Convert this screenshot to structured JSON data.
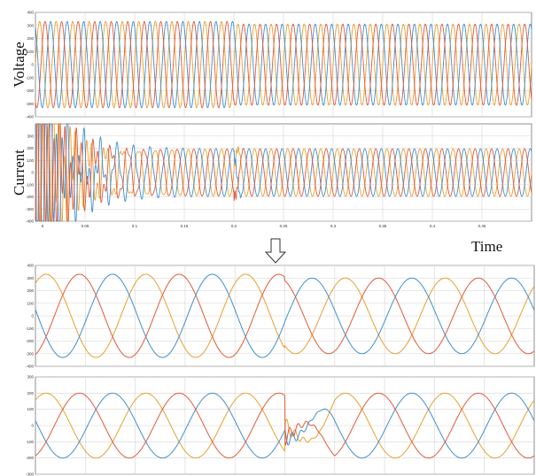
{
  "chart_data": [
    {
      "type": "line",
      "ylabel": "Voltage",
      "xlim": [
        0,
        0.5
      ],
      "ylim": [
        -400,
        400
      ],
      "yticks": [
        "400",
        "300",
        "200",
        "100",
        "0",
        "-100",
        "-200",
        "-300",
        "-400"
      ],
      "grid": true,
      "freq_hz": 60,
      "series": [
        {
          "phase": 0,
          "color": "#e8a030",
          "amplitude_before": 330,
          "amplitude_after": 310,
          "change_at": 0.2
        },
        {
          "phase": 120,
          "color": "#3f8fd0",
          "amplitude_before": 330,
          "amplitude_after": 310,
          "change_at": 0.2
        },
        {
          "phase": 240,
          "color": "#e05a3a",
          "amplitude_before": 330,
          "amplitude_after": 310,
          "change_at": 0.2
        }
      ]
    },
    {
      "type": "line",
      "ylabel": "Current",
      "xlabel": "Time",
      "xlim": [
        0,
        0.5
      ],
      "ylim": [
        -400,
        400
      ],
      "xticks": [
        "0",
        "0.05",
        "0.1",
        "0.15",
        "0.2",
        "0.25",
        "0.3",
        "0.35",
        "0.4",
        "0.45"
      ],
      "yticks": [
        "300",
        "200",
        "100",
        "0",
        "-100",
        "-200",
        "-300",
        "-400"
      ],
      "grid": true,
      "freq_hz": 60,
      "series": [
        {
          "phase": 0,
          "color": "#e8a030",
          "steady_amplitude": 195,
          "inrush_peak": 400
        },
        {
          "phase": 120,
          "color": "#3f8fd0",
          "steady_amplitude": 195,
          "inrush_peak": 400
        },
        {
          "phase": 240,
          "color": "#e05a3a",
          "steady_amplitude": 195,
          "inrush_peak": 400
        }
      ]
    },
    {
      "type": "line",
      "ylim": [
        -400,
        400
      ],
      "yticks": [
        "400",
        "300",
        "200",
        "100",
        "0",
        "-100",
        "-200",
        "-300",
        "-400"
      ],
      "grid": true,
      "cycles": 5,
      "series": [
        {
          "phase": 0,
          "color": "#e8a030",
          "amplitude_before": 330,
          "amplitude_after": 300
        },
        {
          "phase": 120,
          "color": "#3f8fd0",
          "amplitude_before": 330,
          "amplitude_after": 300
        },
        {
          "phase": 240,
          "color": "#e05a3a",
          "amplitude_before": 330,
          "amplitude_after": 300
        }
      ]
    },
    {
      "type": "line",
      "ylim": [
        -300,
        300
      ],
      "yticks": [
        "300",
        "200",
        "100",
        "0",
        "-100",
        "-200",
        "-300"
      ],
      "grid": true,
      "cycles": 5,
      "series": [
        {
          "phase": 0,
          "color": "#e8a030",
          "amplitude": 200
        },
        {
          "phase": 120,
          "color": "#3f8fd0",
          "amplitude": 200
        },
        {
          "phase": 240,
          "color": "#e05a3a",
          "amplitude": 200
        }
      ]
    }
  ],
  "arrow": "down-arrow-icon"
}
